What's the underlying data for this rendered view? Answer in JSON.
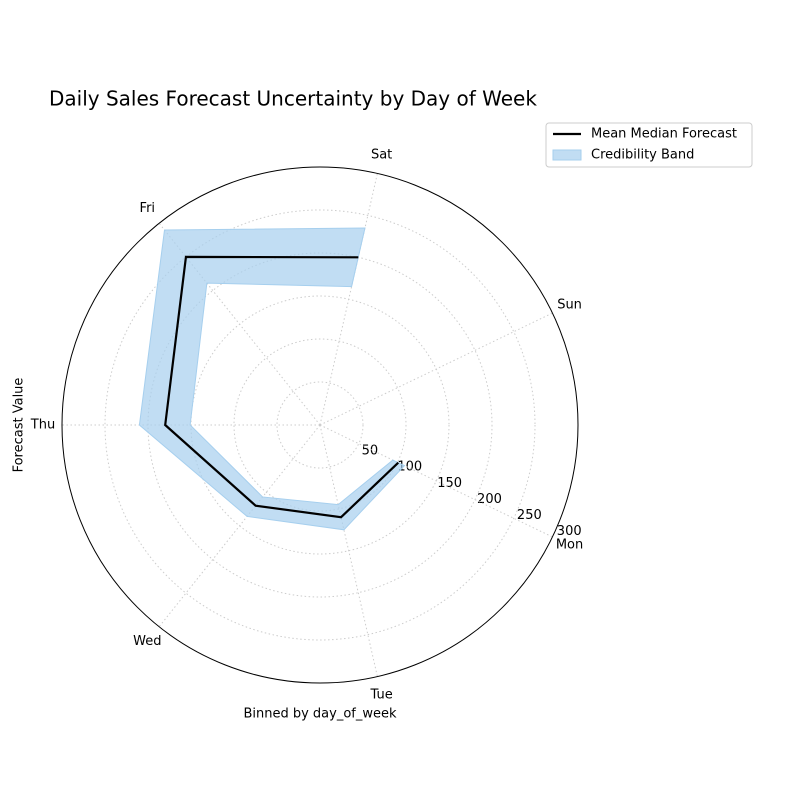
{
  "chart_data": {
    "type": "polar_line",
    "title": "Daily Sales Forecast Uncertainty by Day of Week",
    "xlabel": "Binned by day_of_week",
    "ylabel": "Forecast Value",
    "categories": [
      "Mon",
      "Tue",
      "Wed",
      "Thu",
      "Fri",
      "Sat",
      "Sun"
    ],
    "series": [
      {
        "name": "Mean Median Forecast",
        "color": "#000000",
        "values": [
          101,
          110,
          120,
          180,
          250,
          200,
          null
        ]
      }
    ],
    "band": {
      "name": "Credibility Band",
      "color": "#a6cfee",
      "lower": [
        94,
        95,
        107,
        151,
        211,
        165,
        null
      ],
      "upper": [
        109,
        125,
        136,
        210,
        290,
        235,
        null
      ]
    },
    "ylim": [
      0,
      300
    ],
    "yticks": [
      50,
      100,
      150,
      200,
      250,
      300
    ],
    "grid": true,
    "legend": "upper right"
  }
}
